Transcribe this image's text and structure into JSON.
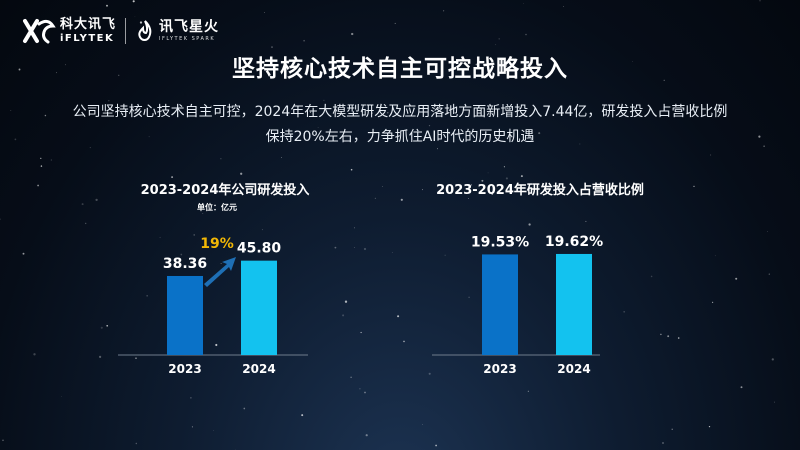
{
  "brand": {
    "logo_cn": "科大讯飞",
    "logo_en": "iFLYTEK",
    "spark_cn": "讯飞星火",
    "spark_en": "IFLYTEK SPARK"
  },
  "title": "坚持核心技术自主可控战略投入",
  "description": {
    "line1": "公司坚持核心技术自主可控，2024年在大模型研发及应用落地方面新增投入7.44亿，研发投入占营收比例",
    "line2": "保持20%左右，力争抓住AI时代的历史机遇"
  },
  "colors": {
    "bar_2023": "#0a72c8",
    "bar_2024": "#13c2ef",
    "growth_label": "#f2b705",
    "growth_arrow": "#1e6fb5"
  },
  "chart_data": [
    {
      "type": "bar",
      "title": "2023-2024年公司研发投入",
      "unit_label": "单位：亿元",
      "categories": [
        "2023",
        "2024"
      ],
      "values": [
        38.36,
        45.8
      ],
      "value_labels": [
        "38.36",
        "45.80"
      ],
      "annotation": "19%",
      "ylim": [
        0,
        50
      ]
    },
    {
      "type": "bar",
      "title": "2023-2024年研发投入占营收比例",
      "categories": [
        "2023",
        "2024"
      ],
      "values": [
        19.53,
        19.62
      ],
      "value_labels": [
        "19.53%",
        "19.62%"
      ],
      "ylim": [
        0,
        20
      ]
    }
  ]
}
